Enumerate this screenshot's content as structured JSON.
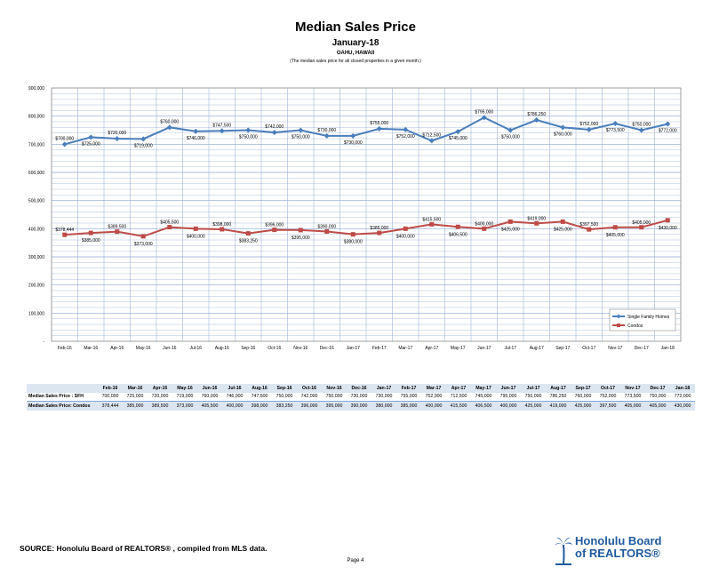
{
  "header": {
    "title": "Median Sales Price",
    "subtitle": "January-18",
    "region": "OAHU, HAWAII",
    "note": "(The median sales price for all closed properties in a given month.)"
  },
  "colors": {
    "sfh": "#4a7ebb",
    "condo": "#be4b48",
    "grid": "#8ea9cf",
    "table_head": "#dce6f1",
    "brand": "#1f5a9e"
  },
  "chart_data": {
    "type": "line",
    "categories": [
      "Feb-16",
      "Mar-16",
      "Apr-16",
      "May-16",
      "Jun-16",
      "Jul-16",
      "Aug-16",
      "Sep-16",
      "Oct-16",
      "Nov-16",
      "Dec-16",
      "Jan-17",
      "Feb-17",
      "Mar-17",
      "Apr-17",
      "May-17",
      "Jun-17",
      "Jul-17",
      "Aug-17",
      "Sep-17",
      "Oct-17",
      "Nov-17",
      "Dec-17",
      "Jan-18"
    ],
    "yticks": [
      "-",
      "100,000",
      "200,000",
      "300,000",
      "400,000",
      "500,000",
      "600,000",
      "700,000",
      "800,000",
      "900,000"
    ],
    "ylim": [
      0,
      900000
    ],
    "grid": true,
    "legend_position": "bottom-right",
    "series": [
      {
        "name": "Single Family Homes",
        "values": [
          700000,
          725000,
          720000,
          719000,
          760000,
          746000,
          747500,
          750000,
          742000,
          750000,
          730000,
          730000,
          755000,
          752000,
          712500,
          745000,
          795000,
          750000,
          786250,
          760000,
          752000,
          773500,
          750000,
          772000
        ],
        "labels": [
          "$700,000",
          "$725,000",
          "$720,000",
          "$719,000",
          "$760,000",
          "$746,000",
          "$747,500",
          "$750,000",
          "$742,000",
          "$750,000",
          "$730,000",
          "$730,000",
          "$755,000",
          "$752,000",
          "$712,500",
          "$745,000",
          "$795,000",
          "$750,000",
          "$786,250",
          "$760,000",
          "$752,000",
          "$773,500",
          "$750,000",
          "$772,000"
        ]
      },
      {
        "name": "Condos",
        "values": [
          378444,
          385000,
          389500,
          373000,
          405500,
          400000,
          398000,
          383250,
          396000,
          395000,
          390000,
          380000,
          385000,
          400000,
          415500,
          406500,
          400000,
          425000,
          419000,
          425000,
          397500,
          405000,
          405000,
          430000
        ],
        "labels": [
          "$378,444",
          "$385,000",
          "$389,500",
          "$373,000",
          "$405,500",
          "$400,000",
          "$398,000",
          "$383,250",
          "$396,000",
          "$395,000",
          "$390,000",
          "$380,000",
          "$385,000",
          "$400,000",
          "$415,500",
          "$406,500",
          "$400,000",
          "$425,000",
          "$419,000",
          "$425,000",
          "$397,500",
          "$405,000",
          "$405,000",
          "$430,000"
        ]
      }
    ]
  },
  "table": {
    "rows": [
      {
        "label": "Median Sales Price : SFH",
        "values": [
          "700,000",
          "725,000",
          "720,000",
          "719,000",
          "760,000",
          "746,000",
          "747,500",
          "750,000",
          "742,000",
          "750,000",
          "730,000",
          "730,000",
          "755,000",
          "752,000",
          "712,500",
          "745,000",
          "795,000",
          "750,000",
          "786,250",
          "760,000",
          "752,000",
          "773,500",
          "750,000",
          "772,000"
        ]
      },
      {
        "label": "Median Sales Price: Condos",
        "values": [
          "378,444",
          "385,000",
          "389,500",
          "373,000",
          "405,500",
          "400,000",
          "398,000",
          "383,250",
          "396,000",
          "395,000",
          "390,000",
          "380,000",
          "385,000",
          "400,000",
          "415,500",
          "406,500",
          "400,000",
          "425,000",
          "419,000",
          "425,000",
          "397,500",
          "405,000",
          "405,000",
          "430,000"
        ]
      }
    ]
  },
  "footer": {
    "source": "SOURCE:  Honolulu Board of REALTORS® , compiled from MLS data.",
    "page": "Page 4",
    "logo_line1": "Honolulu Board",
    "logo_line2": "of REALTORS®"
  }
}
